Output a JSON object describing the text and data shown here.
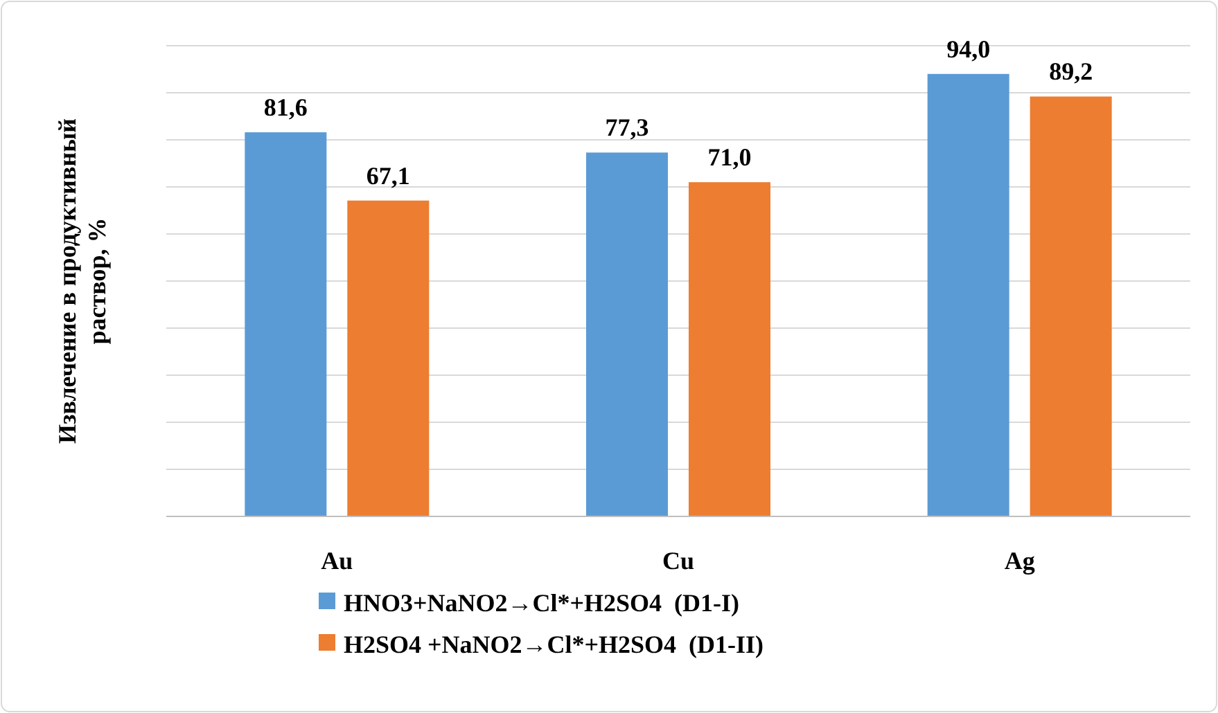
{
  "chart_data": {
    "type": "bar",
    "ylabel": "Извлечение в продуктивный раствор, %",
    "categories": [
      "Au",
      "Cu",
      "Ag"
    ],
    "series": [
      {
        "name": "HNO3+NaNO2→Cl*+H2SO4  (D1-I)",
        "color": "#5b9bd5",
        "values": [
          81.6,
          77.3,
          94.0
        ],
        "value_labels": [
          "81,6",
          "77,3",
          "94,0"
        ]
      },
      {
        "name": "H2SO4 +NaNO2→Cl*+H2SO4  (D1-II)",
        "color": "#ed7d31",
        "values": [
          67.1,
          71.0,
          89.2
        ],
        "value_labels": [
          "67,1",
          "71,0",
          "89,2"
        ]
      }
    ],
    "ylim": [
      0,
      100
    ],
    "yticks": [
      {
        "value": 0,
        "label": null
      },
      {
        "value": 10,
        "label": null
      },
      {
        "value": 20,
        "label": null
      },
      {
        "value": 30,
        "label": null
      },
      {
        "value": 40,
        "label": null
      },
      {
        "value": 50,
        "label": null
      },
      {
        "value": 60,
        "label": null
      },
      {
        "value": 70,
        "label": null
      },
      {
        "value": 80,
        "label": null
      },
      {
        "value": 90,
        "label": null
      },
      {
        "value": 100,
        "label": null
      }
    ],
    "tick_labels": "x",
    "grid": "y",
    "legend": "bottom"
  }
}
